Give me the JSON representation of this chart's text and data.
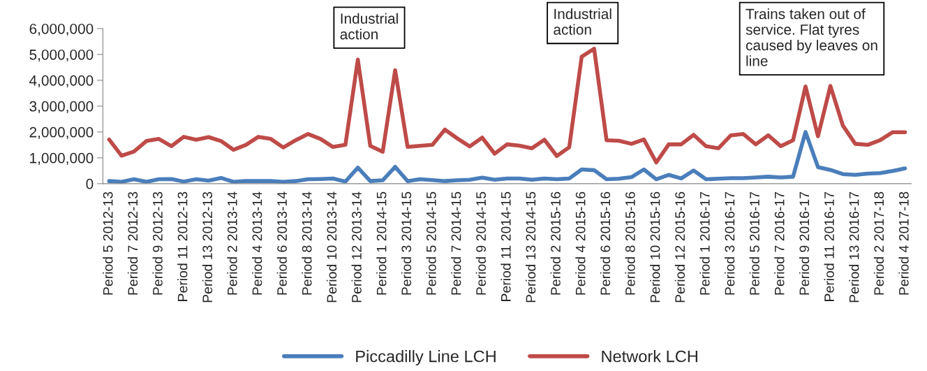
{
  "chart_data": {
    "type": "line",
    "categories": [
      "Period 5 2012-13",
      null,
      "Period 7 2012-13",
      null,
      "Period 9 2012-13",
      null,
      "Period 11 2012-13",
      null,
      "Period 13 2012-13",
      null,
      "Period 2 2013-14",
      null,
      "Period 4 2013-14",
      null,
      "Period 6 2013-14",
      null,
      "Period 8 2013-14",
      null,
      "Period 10 2013-14",
      null,
      "Period 12 2013-14",
      null,
      "Period 1 2014-15",
      null,
      "Period 3 2014-15",
      null,
      "Period 5 2014-15",
      null,
      "Period 7 2014-15",
      null,
      "Period 9 2014-15",
      null,
      "Period 11 2014-15",
      null,
      "Period 13 2014-15",
      null,
      "Period 2 2015-16",
      null,
      "Period 4 2015-16",
      null,
      "Period 6 2015-16",
      null,
      "Period 8 2015-16",
      null,
      "Period 10 2015-16",
      null,
      "Period 12 2015-16",
      null,
      "Period 1 2016-17",
      null,
      "Period 3 2016-17",
      null,
      "Period 5 2016-17",
      null,
      "Period 7 2016-17",
      null,
      "Period 9 2016-17",
      null,
      "Period 11 2016-17",
      null,
      "Period 13 2016-17",
      null,
      "Period 2 2017-18",
      null,
      "Period 4 2017-18"
    ],
    "series": [
      {
        "name": "Piccadilly Line LCH",
        "color": "#4a7ebb",
        "values": [
          100000,
          70000,
          170000,
          70000,
          170000,
          180000,
          80000,
          170000,
          120000,
          220000,
          70000,
          100000,
          100000,
          100000,
          70000,
          100000,
          170000,
          180000,
          200000,
          80000,
          620000,
          100000,
          130000,
          650000,
          100000,
          170000,
          140000,
          100000,
          130000,
          150000,
          230000,
          150000,
          200000,
          200000,
          150000,
          200000,
          170000,
          200000,
          550000,
          520000,
          170000,
          190000,
          250000,
          550000,
          170000,
          340000,
          200000,
          510000,
          170000,
          190000,
          210000,
          210000,
          240000,
          270000,
          240000,
          270000,
          2000000,
          640000,
          530000,
          370000,
          340000,
          390000,
          410000,
          490000,
          590000
        ]
      },
      {
        "name": "Network LCH",
        "color": "#be4b48",
        "values": [
          1710000,
          1080000,
          1240000,
          1650000,
          1730000,
          1450000,
          1810000,
          1700000,
          1800000,
          1650000,
          1310000,
          1500000,
          1810000,
          1730000,
          1400000,
          1680000,
          1920000,
          1730000,
          1420000,
          1500000,
          4800000,
          1460000,
          1230000,
          4390000,
          1420000,
          1460000,
          1500000,
          2090000,
          1750000,
          1440000,
          1780000,
          1160000,
          1520000,
          1470000,
          1370000,
          1700000,
          1070000,
          1410000,
          4910000,
          5220000,
          1680000,
          1660000,
          1540000,
          1710000,
          820000,
          1520000,
          1520000,
          1890000,
          1450000,
          1370000,
          1870000,
          1920000,
          1520000,
          1870000,
          1450000,
          1680000,
          3760000,
          1830000,
          3780000,
          2250000,
          1540000,
          1500000,
          1680000,
          1990000,
          1990000
        ]
      }
    ],
    "ylim": [
      0,
      6000000
    ],
    "yticks": [
      {
        "value": 0,
        "label": "0"
      },
      {
        "value": 1000000,
        "label": "1,000,000"
      },
      {
        "value": 2000000,
        "label": "2,000,000"
      },
      {
        "value": 3000000,
        "label": "3,000,000"
      },
      {
        "value": 4000000,
        "label": "4,000,000"
      },
      {
        "value": 5000000,
        "label": "5,000,000"
      },
      {
        "value": 6000000,
        "label": "6,000,000"
      }
    ],
    "annotations": [
      "Industrial\naction",
      "Industrial\naction",
      "Trains taken out of\nservice. Flat tyres\ncaused by leaves on\nline"
    ],
    "legend": "bottom",
    "grid": false,
    "marker": "none",
    "line_style": "solid"
  }
}
